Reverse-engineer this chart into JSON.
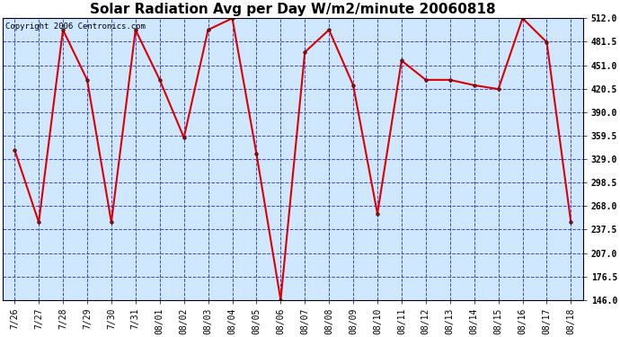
{
  "title": "Solar Radiation Avg per Day W/m2/minute 20060818",
  "copyright_text": "Copyright 2006 Centronics.com",
  "labels": [
    "7/26",
    "7/27",
    "7/28",
    "7/29",
    "7/30",
    "7/31",
    "08/01",
    "08/02",
    "08/03",
    "08/04",
    "08/05",
    "08/06",
    "08/07",
    "08/08",
    "08/09",
    "08/10",
    "08/11",
    "08/12",
    "08/13",
    "08/14",
    "08/15",
    "08/16",
    "08/17",
    "08/18"
  ],
  "values": [
    341,
    247,
    497,
    432,
    247,
    497,
    432,
    357,
    497,
    512,
    336,
    146,
    468,
    497,
    425,
    258,
    457,
    432,
    432,
    425,
    420,
    512,
    481,
    247
  ],
  "ylim_min": 146.0,
  "ylim_max": 512.0,
  "yticks": [
    146.0,
    176.5,
    207.0,
    237.5,
    268.0,
    298.5,
    329.0,
    359.5,
    390.0,
    420.5,
    451.0,
    481.5,
    512.0
  ],
  "line_color": "#dd0000",
  "marker_face": "#cc0000",
  "marker_edge": "#000000",
  "bg_color": "#d0e8ff",
  "outer_bg": "#ffffff",
  "grid_color": "#4444cc",
  "title_fontsize": 11,
  "tick_fontsize": 7,
  "copyright_fontsize": 6.5
}
